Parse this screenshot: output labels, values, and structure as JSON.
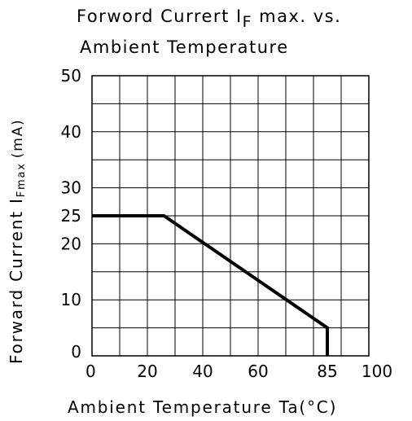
{
  "chart_data": {
    "type": "line",
    "title_line1": "Forword Currert I",
    "title_subscript": "F",
    "title_line1_tail": "max. vs.",
    "title_line2": "Ambient Temperature",
    "xlabel": "Ambient Temperature Ta(°C)",
    "ylabel_prefix": "Forward Current I",
    "ylabel_subscript": "Fmax",
    "ylabel_suffix": "(mA)",
    "xlim": [
      0,
      100
    ],
    "ylim": [
      0,
      50
    ],
    "x_ticks": [
      {
        "value": 0,
        "label": "0"
      },
      {
        "value": 20,
        "label": "20"
      },
      {
        "value": 40,
        "label": "40"
      },
      {
        "value": 60,
        "label": "60"
      },
      {
        "value": 85,
        "label": "85"
      },
      {
        "value": 100,
        "label": "100"
      }
    ],
    "y_ticks": [
      {
        "value": 0,
        "label": "0"
      },
      {
        "value": 10,
        "label": "10"
      },
      {
        "value": 20,
        "label": "20"
      },
      {
        "value": 25,
        "label": "25"
      },
      {
        "value": 30,
        "label": "30"
      },
      {
        "value": 40,
        "label": "40"
      },
      {
        "value": 50,
        "label": "50"
      }
    ],
    "x_grid": [
      0,
      10,
      20,
      30,
      40,
      50,
      60,
      70,
      80,
      90,
      100
    ],
    "y_grid": [
      0,
      5,
      10,
      15,
      20,
      25,
      30,
      35,
      40,
      45,
      50
    ],
    "grid": true,
    "series": [
      {
        "x": [
          0,
          26,
          85,
          85
        ],
        "y": [
          25,
          25,
          5,
          0
        ],
        "color": "#000000"
      }
    ]
  }
}
